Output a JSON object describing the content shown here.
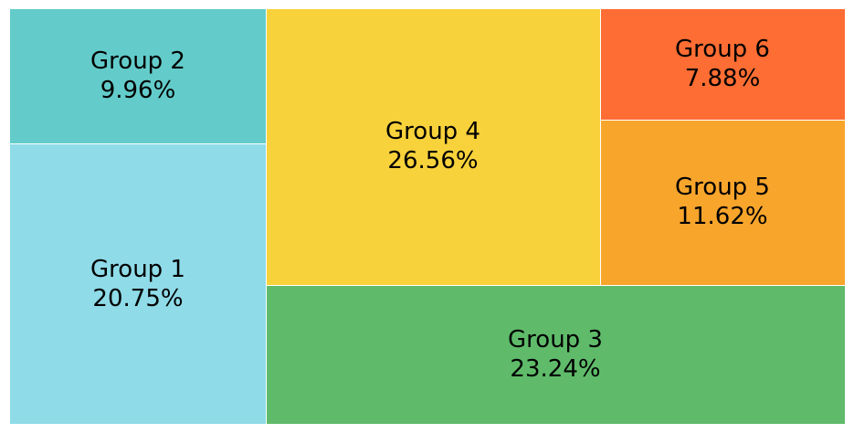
{
  "chart_data": {
    "type": "treemap",
    "unit": "%",
    "items": [
      {
        "label": "Group 1",
        "value": 20.75,
        "value_label": "20.75%",
        "color": "#8fdbe8"
      },
      {
        "label": "Group 2",
        "value": 9.96,
        "value_label": "9.96%",
        "color": "#63ccca"
      },
      {
        "label": "Group 3",
        "value": 23.24,
        "value_label": "23.24%",
        "color": "#5fbb6a"
      },
      {
        "label": "Group 4",
        "value": 26.56,
        "value_label": "26.56%",
        "color": "#f8d23b"
      },
      {
        "label": "Group 5",
        "value": 11.62,
        "value_label": "11.62%",
        "color": "#f8a52c"
      },
      {
        "label": "Group 6",
        "value": 7.88,
        "value_label": "7.88%",
        "color": "#fe6d33"
      }
    ]
  }
}
